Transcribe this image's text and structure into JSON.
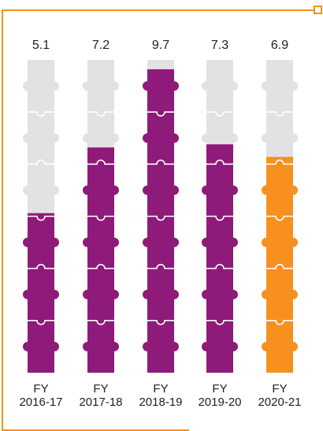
{
  "chart_data": {
    "type": "bar",
    "title": "",
    "xlabel": "",
    "ylabel": "",
    "ylim": [
      0,
      10
    ],
    "categories": [
      {
        "line1": "FY",
        "line2": "2016-17"
      },
      {
        "line1": "FY",
        "line2": "2017-18"
      },
      {
        "line1": "FY",
        "line2": "2018-19"
      },
      {
        "line1": "FY",
        "line2": "2019-20"
      },
      {
        "line1": "FY",
        "line2": "2020-21"
      }
    ],
    "values": [
      5.1,
      7.2,
      9.7,
      7.3,
      6.9
    ],
    "value_labels": [
      "5.1",
      "7.2",
      "9.7",
      "7.3",
      "6.9"
    ],
    "highlight_index": 4,
    "grid": false,
    "legend": "none"
  },
  "colors": {
    "bar": "#8e1a7a",
    "highlight": "#f7901e",
    "empty": "#e2e2e4",
    "frame": "#f7901e"
  }
}
